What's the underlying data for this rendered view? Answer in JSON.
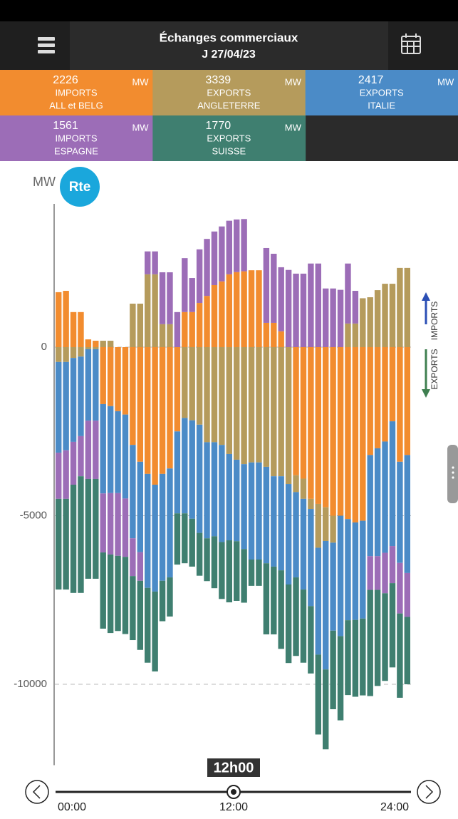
{
  "header": {
    "title": "Échanges commerciaux",
    "date": "J 27/04/23"
  },
  "tiles": [
    {
      "value": 2226,
      "unit": "MW",
      "line1": "IMPORTS",
      "line2": "ALL et BELG",
      "color": "#f28c2f"
    },
    {
      "value": 3339,
      "unit": "MW",
      "line1": "EXPORTS",
      "line2": "ANGLETERRE",
      "color": "#b59b5c"
    },
    {
      "value": 2417,
      "unit": "MW",
      "line1": "EXPORTS",
      "line2": "ITALIE",
      "color": "#4b8bc7"
    },
    {
      "value": 1561,
      "unit": "MW",
      "line1": "IMPORTS",
      "line2": "ESPAGNE",
      "color": "#9c6db7"
    },
    {
      "value": 1770,
      "unit": "MW",
      "line1": "EXPORTS",
      "line2": "SUISSE",
      "color": "#3f7f70"
    }
  ],
  "chart_data": {
    "type": "stacked_bar",
    "y_label": "MW",
    "logo": "Rte",
    "imports_label": "IMPORTS",
    "exports_label": "EXPORTS",
    "ylim": [
      -12400,
      4250
    ],
    "yticks": [
      0,
      -5000,
      -10000
    ],
    "grid": true,
    "series": [
      {
        "color": "#f28c2f",
        "values": [
          1630,
          1670,
          1040,
          1040,
          230,
          190,
          -1690,
          -1750,
          -1900,
          -2000,
          -2900,
          -3400,
          -3760,
          -4080,
          -3760,
          -3600,
          -2500,
          1040,
          1040,
          1310,
          1520,
          1840,
          1950,
          2160,
          2226,
          2250,
          2280,
          2280,
          720,
          720,
          470,
          0,
          -3800,
          -3900,
          -4500,
          -4650,
          -4750,
          -5000,
          -5000,
          -5100,
          -5200,
          -5150,
          -3200,
          -3000,
          -2800,
          -2200,
          -3400,
          -3200
        ]
      },
      {
        "color": "#b59b5c",
        "values": [
          -440,
          -440,
          -320,
          -280,
          -60,
          -60,
          190,
          190,
          0,
          0,
          1290,
          1290,
          2160,
          2160,
          680,
          680,
          0,
          -2100,
          -2170,
          -2300,
          -2820,
          -2820,
          -2900,
          -3170,
          -3339,
          -3470,
          -3420,
          -3420,
          -3550,
          -3830,
          -3830,
          -4060,
          -500,
          -600,
          -300,
          -1300,
          -1000,
          -800,
          0,
          700,
          700,
          1450,
          1480,
          1690,
          1880,
          1880,
          2350,
          2350
        ]
      },
      {
        "color": "#4b8bc7",
        "values": [
          -2690,
          -2620,
          -2490,
          -2360,
          -2120,
          -2120,
          -2650,
          -2580,
          -2430,
          -2490,
          -2770,
          -2680,
          -3380,
          -3170,
          -3170,
          -3230,
          -2430,
          -2830,
          -2920,
          -3210,
          -2850,
          -2790,
          -2880,
          -2560,
          -2417,
          -2520,
          -2880,
          -2880,
          -2860,
          -2680,
          -2790,
          -2980,
          -2530,
          -2690,
          -2880,
          -3170,
          -3810,
          -2610,
          -3570,
          -3000,
          -2890,
          -2900,
          -3000,
          -3200,
          -3300,
          -3700,
          -3000,
          -3500
        ]
      },
      {
        "color": "#9c6db7",
        "values": [
          -1370,
          -1440,
          -1270,
          -1190,
          -1730,
          -1730,
          -1750,
          -1820,
          -1860,
          -1730,
          -1120,
          -850,
          680,
          680,
          1540,
          1540,
          1040,
          1600,
          1010,
          1590,
          1690,
          1590,
          1630,
          1590,
          1561,
          1550,
          0,
          0,
          2220,
          2050,
          1900,
          2290,
          2180,
          2180,
          2480,
          2480,
          1740,
          1740,
          1700,
          1780,
          970,
          0,
          -1000,
          -1000,
          -1200,
          -1100,
          -1500,
          -1300
        ]
      },
      {
        "color": "#3f7f70",
        "values": [
          -2690,
          -2690,
          -3210,
          -3460,
          -2960,
          -2960,
          -2260,
          -2330,
          -2230,
          -2290,
          -1900,
          -2050,
          -2220,
          -2370,
          -1200,
          -1160,
          -1520,
          -1480,
          -1420,
          -1270,
          -1270,
          -1540,
          -1690,
          -1840,
          -1770,
          -1590,
          -780,
          -780,
          -2110,
          -2010,
          -2330,
          -2330,
          -2330,
          -2170,
          -2000,
          -2370,
          -2370,
          -2330,
          -2500,
          -2220,
          -2280,
          -2280,
          -3150,
          -2850,
          -2600,
          -2500,
          -2500,
          -2000
        ]
      }
    ]
  },
  "slider": {
    "current": "12h00",
    "labels": [
      "00:00",
      "12:00",
      "24:00"
    ]
  }
}
